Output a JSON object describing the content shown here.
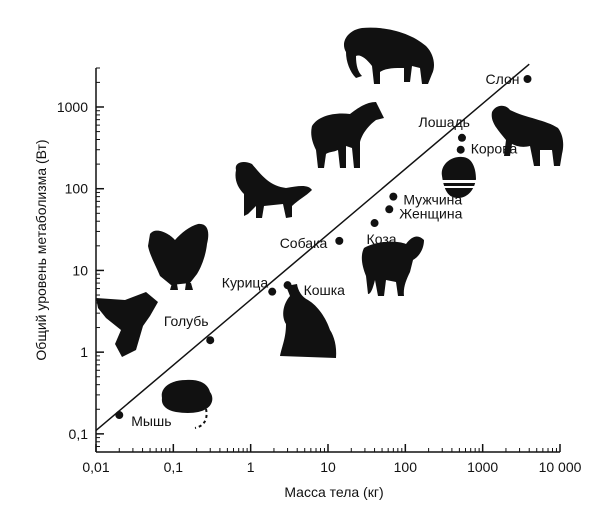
{
  "chart_data": {
    "type": "scatter",
    "title": "",
    "xlabel": "Масса тела (кг)",
    "ylabel": "Общий уровень метаболизма (Вт)",
    "x_scale": "log",
    "y_scale": "log",
    "xlim": [
      0.01,
      10000
    ],
    "ylim": [
      0.06,
      3000
    ],
    "x_ticks": [
      0.01,
      0.1,
      1,
      10,
      100,
      1000,
      10000
    ],
    "x_tick_labels": [
      "0,01",
      "0,1",
      "1",
      "10",
      "100",
      "1000",
      "10 000"
    ],
    "y_ticks": [
      0.1,
      1,
      10,
      100,
      1000
    ],
    "y_tick_labels": [
      "0,1",
      "1",
      "10",
      "100",
      "1000"
    ],
    "grid": false,
    "fit_line": {
      "x": [
        0.01,
        4000
      ],
      "y": [
        0.11,
        1900
      ]
    },
    "points": [
      {
        "label": "Мышь",
        "x": 0.02,
        "y": 0.17
      },
      {
        "label": "Голубь",
        "x": 0.3,
        "y": 1.4
      },
      {
        "label": "Курица",
        "x": 1.9,
        "y": 5.5
      },
      {
        "label": "Кошка",
        "x": 3.0,
        "y": 6.6
      },
      {
        "label": "Собака",
        "x": 14,
        "y": 23
      },
      {
        "label": "Коза",
        "x": 40,
        "y": 38
      },
      {
        "label": "Женщина",
        "x": 62,
        "y": 56
      },
      {
        "label": "Мужчина",
        "x": 70,
        "y": 80
      },
      {
        "label": "Корова",
        "x": 520,
        "y": 300
      },
      {
        "label": "Лошадь",
        "x": 540,
        "y": 420
      },
      {
        "label": "Слон",
        "x": 3800,
        "y": 2200
      }
    ],
    "silhouettes": [
      "mouse-icon",
      "pigeon-icon",
      "chicken-icon",
      "cat-icon",
      "dog-icon",
      "goat-icon",
      "human-icon",
      "horse-icon",
      "cow-icon",
      "elephant-icon"
    ]
  }
}
